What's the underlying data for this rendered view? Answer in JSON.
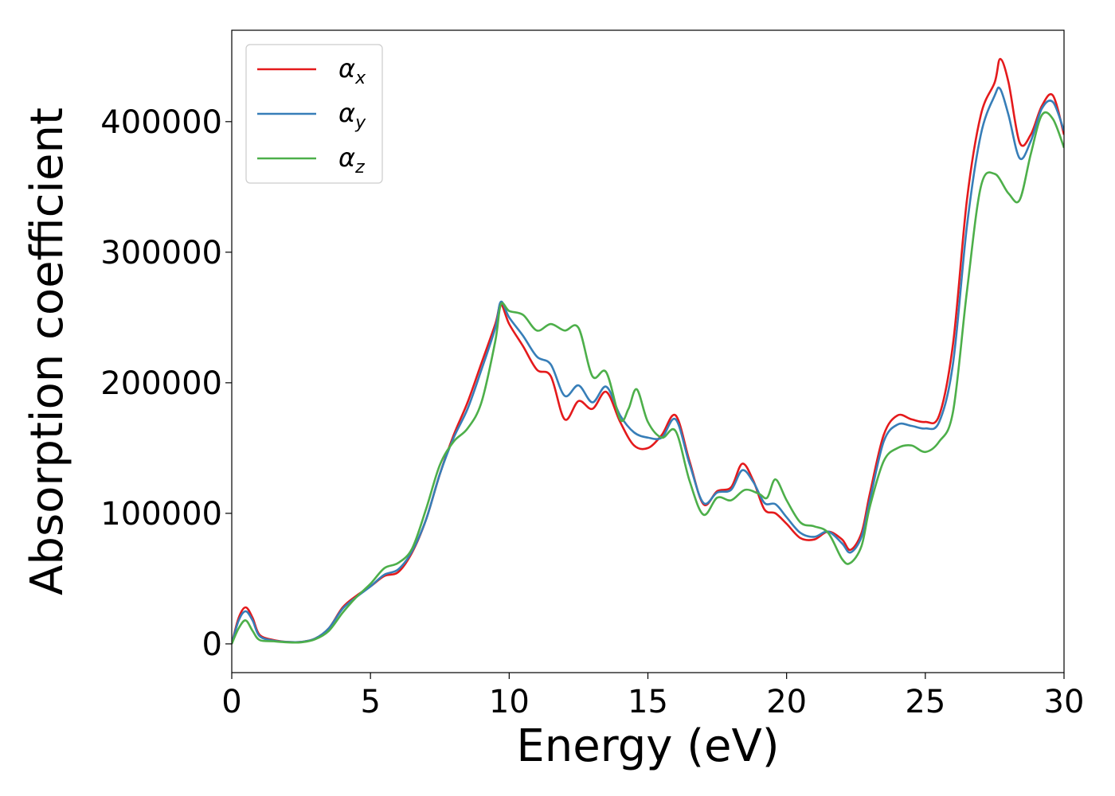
{
  "chart_data": {
    "type": "line",
    "title": "",
    "xlabel": "Energy (eV)",
    "ylabel": "Absorption coefficient",
    "xlim": [
      0,
      30
    ],
    "ylim": [
      -22000,
      470000
    ],
    "xticks": [
      0,
      5,
      10,
      15,
      20,
      25,
      30
    ],
    "yticks": [
      0,
      100000,
      200000,
      300000,
      400000
    ],
    "grid": false,
    "legend": "top-left",
    "series": [
      {
        "name": "α",
        "subscript": "x",
        "color": "#e41a1c",
        "points": [
          [
            0,
            0
          ],
          [
            0.25,
            20000
          ],
          [
            0.5,
            28000
          ],
          [
            0.75,
            20000
          ],
          [
            1.0,
            7000
          ],
          [
            1.5,
            3000
          ],
          [
            2.0,
            1500
          ],
          [
            2.5,
            1500
          ],
          [
            3.0,
            4000
          ],
          [
            3.5,
            12000
          ],
          [
            4.0,
            28000
          ],
          [
            4.5,
            37000
          ],
          [
            5.0,
            44000
          ],
          [
            5.5,
            52000
          ],
          [
            6.0,
            55000
          ],
          [
            6.5,
            70000
          ],
          [
            7.0,
            95000
          ],
          [
            7.5,
            130000
          ],
          [
            8.0,
            160000
          ],
          [
            8.5,
            185000
          ],
          [
            9.0,
            215000
          ],
          [
            9.5,
            245000
          ],
          [
            9.7,
            260000
          ],
          [
            10.0,
            245000
          ],
          [
            10.5,
            228000
          ],
          [
            11.0,
            210000
          ],
          [
            11.5,
            205000
          ],
          [
            12.0,
            172000
          ],
          [
            12.5,
            186000
          ],
          [
            13.0,
            180000
          ],
          [
            13.5,
            193000
          ],
          [
            14.0,
            170000
          ],
          [
            14.5,
            152000
          ],
          [
            15.0,
            150000
          ],
          [
            15.5,
            160000
          ],
          [
            16.0,
            175000
          ],
          [
            16.5,
            140000
          ],
          [
            17.0,
            107000
          ],
          [
            17.5,
            117000
          ],
          [
            18.0,
            120000
          ],
          [
            18.4,
            138000
          ],
          [
            18.8,
            125000
          ],
          [
            19.2,
            103000
          ],
          [
            19.6,
            100000
          ],
          [
            20.0,
            92000
          ],
          [
            20.5,
            81000
          ],
          [
            21.0,
            80000
          ],
          [
            21.5,
            86000
          ],
          [
            22.0,
            80000
          ],
          [
            22.3,
            72000
          ],
          [
            22.7,
            85000
          ],
          [
            23.0,
            115000
          ],
          [
            23.5,
            160000
          ],
          [
            24.0,
            175000
          ],
          [
            24.5,
            172000
          ],
          [
            25.0,
            170000
          ],
          [
            25.5,
            175000
          ],
          [
            26.0,
            230000
          ],
          [
            26.5,
            340000
          ],
          [
            27.0,
            405000
          ],
          [
            27.5,
            430000
          ],
          [
            27.7,
            448000
          ],
          [
            28.0,
            430000
          ],
          [
            28.4,
            384000
          ],
          [
            28.8,
            390000
          ],
          [
            29.2,
            412000
          ],
          [
            29.6,
            420000
          ],
          [
            30.0,
            390000
          ]
        ]
      },
      {
        "name": "α",
        "subscript": "y",
        "color": "#377eb8",
        "points": [
          [
            0,
            0
          ],
          [
            0.25,
            18000
          ],
          [
            0.5,
            25000
          ],
          [
            0.75,
            18000
          ],
          [
            1.0,
            6000
          ],
          [
            1.5,
            2500
          ],
          [
            2.0,
            1500
          ],
          [
            2.5,
            1500
          ],
          [
            3.0,
            4000
          ],
          [
            3.5,
            12000
          ],
          [
            4.0,
            27000
          ],
          [
            4.5,
            36000
          ],
          [
            5.0,
            44000
          ],
          [
            5.5,
            53000
          ],
          [
            6.0,
            57000
          ],
          [
            6.5,
            71000
          ],
          [
            7.0,
            95000
          ],
          [
            7.5,
            130000
          ],
          [
            8.0,
            158000
          ],
          [
            8.5,
            180000
          ],
          [
            9.0,
            210000
          ],
          [
            9.5,
            242000
          ],
          [
            9.7,
            262000
          ],
          [
            10.0,
            250000
          ],
          [
            10.5,
            236000
          ],
          [
            11.0,
            220000
          ],
          [
            11.5,
            214000
          ],
          [
            12.0,
            190000
          ],
          [
            12.5,
            198000
          ],
          [
            13.0,
            185000
          ],
          [
            13.5,
            197000
          ],
          [
            14.0,
            175000
          ],
          [
            14.5,
            162000
          ],
          [
            15.0,
            158000
          ],
          [
            15.5,
            158000
          ],
          [
            16.0,
            172000
          ],
          [
            16.5,
            138000
          ],
          [
            17.0,
            108000
          ],
          [
            17.5,
            116000
          ],
          [
            18.0,
            118000
          ],
          [
            18.4,
            133000
          ],
          [
            18.8,
            124000
          ],
          [
            19.2,
            108000
          ],
          [
            19.6,
            107000
          ],
          [
            20.0,
            97000
          ],
          [
            20.5,
            85000
          ],
          [
            21.0,
            82000
          ],
          [
            21.5,
            86000
          ],
          [
            22.0,
            77000
          ],
          [
            22.3,
            70000
          ],
          [
            22.7,
            82000
          ],
          [
            23.0,
            110000
          ],
          [
            23.5,
            155000
          ],
          [
            24.0,
            168000
          ],
          [
            24.5,
            167000
          ],
          [
            25.0,
            165000
          ],
          [
            25.5,
            170000
          ],
          [
            26.0,
            215000
          ],
          [
            26.5,
            320000
          ],
          [
            27.0,
            390000
          ],
          [
            27.5,
            420000
          ],
          [
            27.7,
            425000
          ],
          [
            28.0,
            405000
          ],
          [
            28.4,
            372000
          ],
          [
            28.8,
            385000
          ],
          [
            29.2,
            410000
          ],
          [
            29.6,
            415000
          ],
          [
            30.0,
            393000
          ]
        ]
      },
      {
        "name": "α",
        "subscript": "z",
        "color": "#4daf4a",
        "points": [
          [
            0,
            0
          ],
          [
            0.25,
            12000
          ],
          [
            0.5,
            18000
          ],
          [
            0.75,
            10000
          ],
          [
            1.0,
            3000
          ],
          [
            1.5,
            2000
          ],
          [
            2.0,
            1200
          ],
          [
            2.5,
            1200
          ],
          [
            3.0,
            3500
          ],
          [
            3.5,
            10000
          ],
          [
            4.0,
            24000
          ],
          [
            4.5,
            36000
          ],
          [
            5.0,
            46000
          ],
          [
            5.5,
            58000
          ],
          [
            6.0,
            62000
          ],
          [
            6.5,
            73000
          ],
          [
            7.0,
            103000
          ],
          [
            7.5,
            137000
          ],
          [
            8.0,
            155000
          ],
          [
            8.5,
            165000
          ],
          [
            9.0,
            185000
          ],
          [
            9.5,
            232000
          ],
          [
            9.7,
            260000
          ],
          [
            10.0,
            255000
          ],
          [
            10.5,
            252000
          ],
          [
            11.0,
            240000
          ],
          [
            11.5,
            245000
          ],
          [
            12.0,
            240000
          ],
          [
            12.5,
            242000
          ],
          [
            13.0,
            205000
          ],
          [
            13.5,
            208000
          ],
          [
            14.0,
            172000
          ],
          [
            14.3,
            180000
          ],
          [
            14.6,
            195000
          ],
          [
            15.0,
            170000
          ],
          [
            15.5,
            158000
          ],
          [
            16.0,
            163000
          ],
          [
            16.5,
            125000
          ],
          [
            17.0,
            99000
          ],
          [
            17.5,
            112000
          ],
          [
            18.0,
            110000
          ],
          [
            18.5,
            118000
          ],
          [
            19.0,
            115000
          ],
          [
            19.3,
            112000
          ],
          [
            19.6,
            126000
          ],
          [
            20.0,
            110000
          ],
          [
            20.5,
            93000
          ],
          [
            21.0,
            90000
          ],
          [
            21.5,
            85000
          ],
          [
            22.0,
            65000
          ],
          [
            22.3,
            62000
          ],
          [
            22.7,
            75000
          ],
          [
            23.0,
            105000
          ],
          [
            23.5,
            140000
          ],
          [
            24.0,
            150000
          ],
          [
            24.5,
            152000
          ],
          [
            25.0,
            147000
          ],
          [
            25.5,
            155000
          ],
          [
            26.0,
            178000
          ],
          [
            26.5,
            270000
          ],
          [
            27.0,
            350000
          ],
          [
            27.5,
            360000
          ],
          [
            28.0,
            345000
          ],
          [
            28.4,
            340000
          ],
          [
            28.8,
            375000
          ],
          [
            29.2,
            405000
          ],
          [
            29.6,
            402000
          ],
          [
            30.0,
            380000
          ]
        ]
      }
    ]
  }
}
